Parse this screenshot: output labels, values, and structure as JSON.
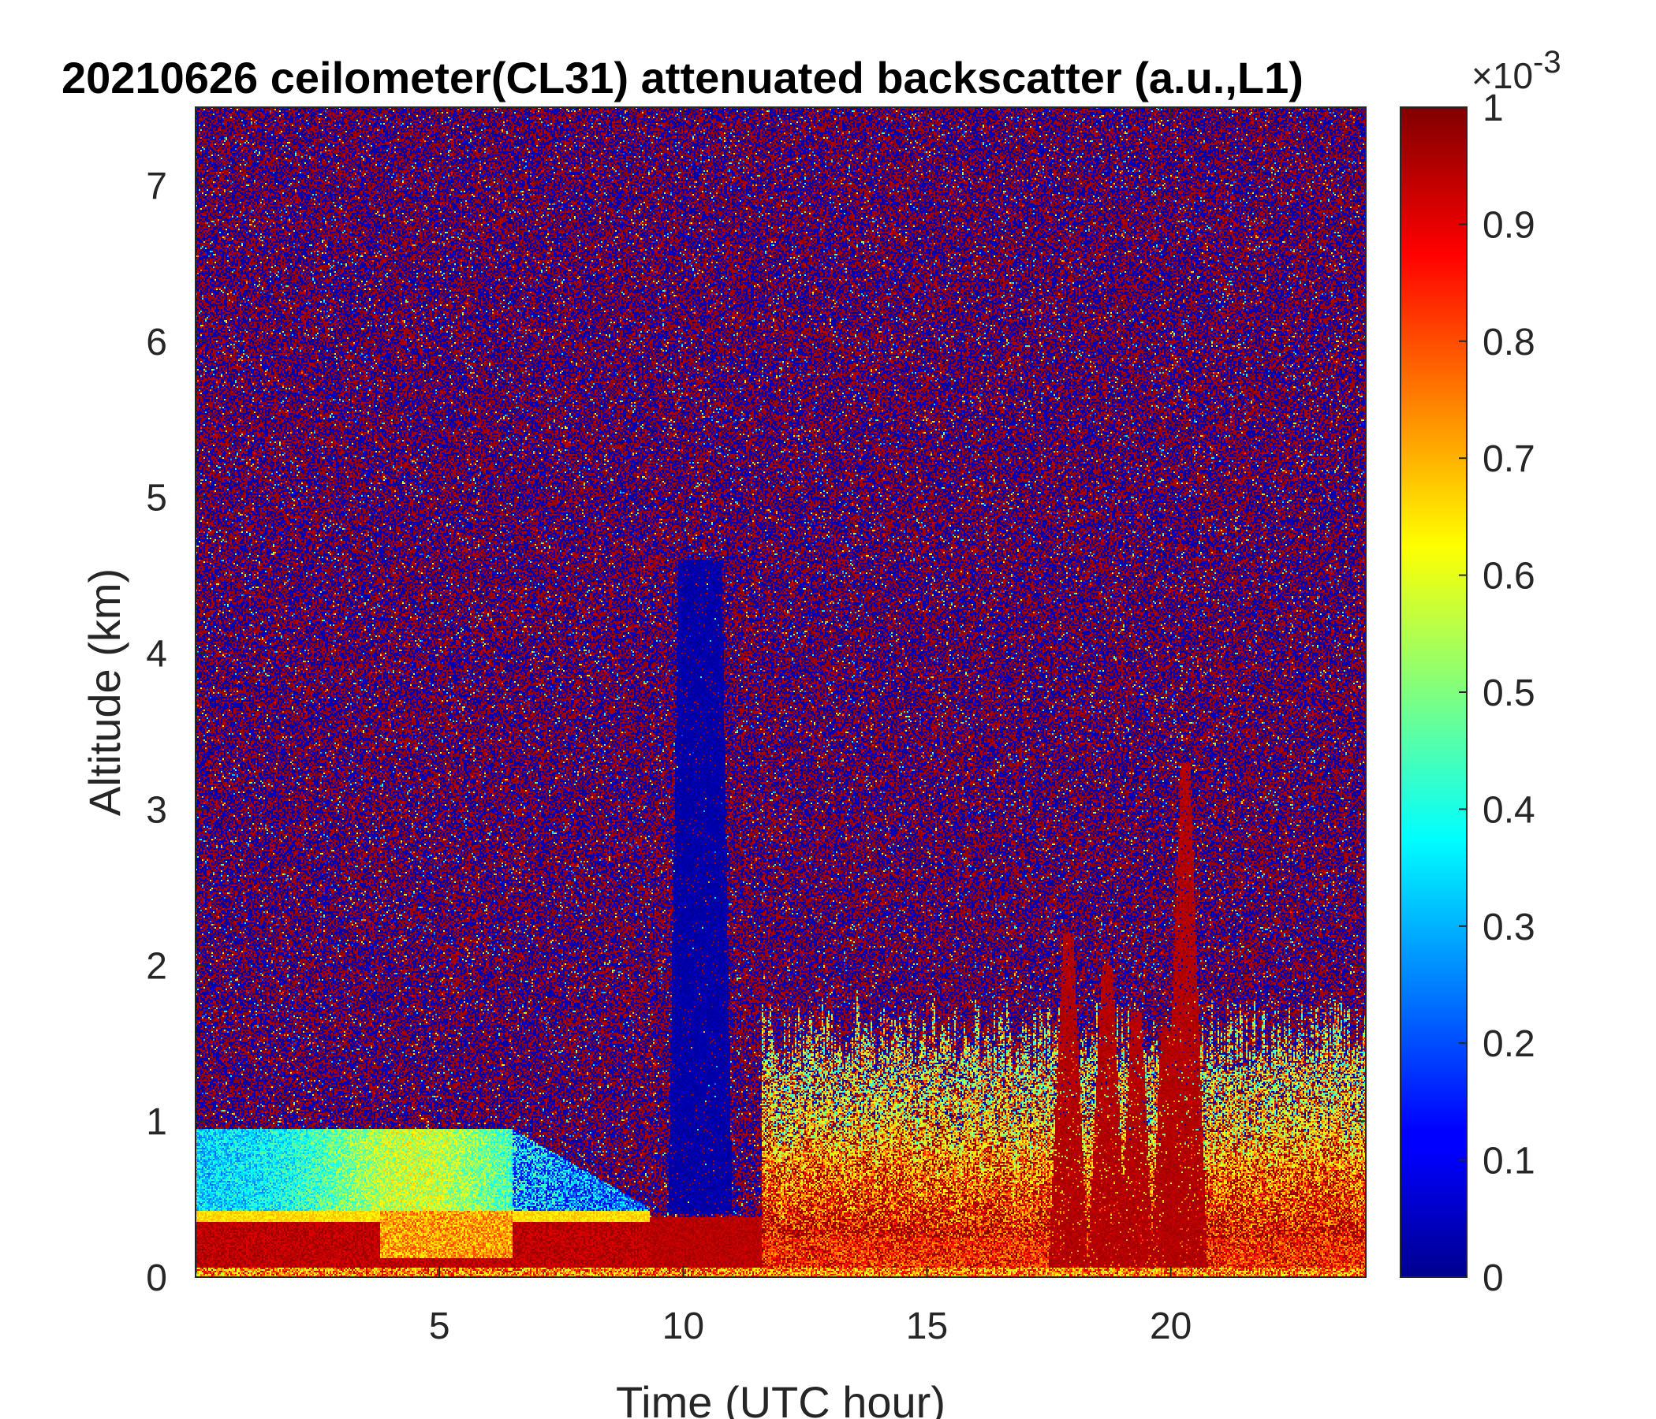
{
  "chart_data": {
    "type": "heatmap",
    "title": "20210626 ceilometer(CL31) attenuated backscatter (a.u.,L1)",
    "xlabel": "Time (UTC hour)",
    "ylabel": "Altitude (km)",
    "xlim": [
      0,
      24
    ],
    "ylim": [
      0,
      7.5
    ],
    "xticks": [
      "5",
      "10",
      "15",
      "20"
    ],
    "xtick_values": [
      5,
      10,
      15,
      20
    ],
    "yticks": [
      "0",
      "1",
      "2",
      "3",
      "4",
      "5",
      "6",
      "7"
    ],
    "ytick_values": [
      0,
      1,
      2,
      3,
      4,
      5,
      6,
      7
    ],
    "colorbar": {
      "colormap": "jet",
      "clim": [
        0,
        1
      ],
      "multiplier": "×10",
      "exponent": "-3",
      "ticks": [
        "0",
        "0.1",
        "0.2",
        "0.3",
        "0.4",
        "0.5",
        "0.6",
        "0.7",
        "0.8",
        "0.9",
        "1"
      ],
      "tick_values": [
        0,
        0.1,
        0.2,
        0.3,
        0.4,
        0.5,
        0.6,
        0.7,
        0.8,
        0.9,
        1.0
      ]
    },
    "features": [
      {
        "name": "surface aerosol layer",
        "x_range": [
          0,
          7
        ],
        "altitude_km": [
          0,
          0.4
        ],
        "value": 1.0
      },
      {
        "name": "elevated aerosol layer",
        "x_range": [
          0,
          7
        ],
        "altitude_km": [
          0.4,
          0.9
        ],
        "value": 0.4
      },
      {
        "name": "low-signal column",
        "x_range": [
          9.5,
          11
        ],
        "altitude_km": [
          0.4,
          4.5
        ],
        "value": 0.0
      },
      {
        "name": "afternoon boundary layer",
        "x_range": [
          11.5,
          24
        ],
        "altitude_km": [
          0,
          0.8
        ],
        "value": 0.85
      },
      {
        "name": "convective plumes",
        "x_range": [
          17.5,
          21
        ],
        "altitude_km": [
          0,
          3.3
        ],
        "value": 1.0
      },
      {
        "name": "noise background",
        "x_range": [
          0,
          24
        ],
        "altitude_km": [
          1,
          7.5
        ],
        "value": "alternating 0 and 1"
      }
    ],
    "grid": false,
    "legend": "none"
  }
}
